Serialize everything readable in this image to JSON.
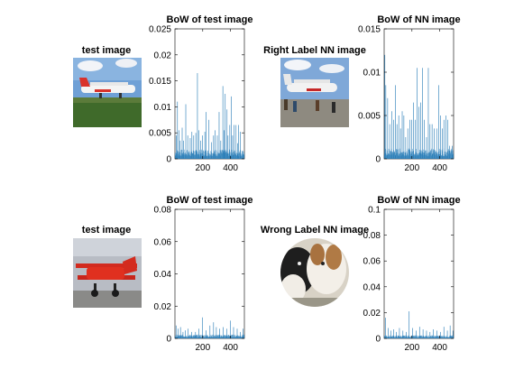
{
  "figure": {
    "panels": [
      {
        "image_title": "test image",
        "image_subject": "white twin-prop aircraft on grass",
        "image_shape": "rect",
        "chart_index": 0
      },
      {
        "image_title": "Right Label NN image",
        "image_subject": "white twin-prop aircraft on tarmac with people",
        "image_shape": "rect",
        "chart_index": 1
      },
      {
        "image_title": "test image",
        "image_subject": "red biplane aircraft",
        "image_shape": "rect",
        "chart_index": 2
      },
      {
        "image_title": "Wrong Label NN image",
        "image_subject": "dogs in a circular crop",
        "image_shape": "circle",
        "chart_index": 3
      }
    ]
  },
  "chart_data": [
    {
      "type": "bar",
      "title": "BoW of test image",
      "xlabel": "",
      "ylabel": "",
      "xlim": [
        0,
        500
      ],
      "ylim": [
        0,
        0.025
      ],
      "xticks": [
        200,
        400
      ],
      "xticklabels": [
        "200",
        "400"
      ],
      "yticks": [
        0,
        0.005,
        0.01,
        0.015,
        0.02,
        0.025
      ],
      "yticklabels": [
        "0",
        "0.005",
        "0.01",
        "0.015",
        "0.02",
        "0.025"
      ],
      "bar_color": "#1f77b4",
      "num_bins": 500,
      "baseline_level": 0.0015,
      "peaks": [
        [
          10,
          0.0045
        ],
        [
          18,
          0.011
        ],
        [
          30,
          0.0055
        ],
        [
          38,
          0.0035
        ],
        [
          52,
          0.006
        ],
        [
          62,
          0.0035
        ],
        [
          78,
          0.0105
        ],
        [
          92,
          0.0045
        ],
        [
          110,
          0.004
        ],
        [
          122,
          0.0052
        ],
        [
          135,
          0.0045
        ],
        [
          150,
          0.005
        ],
        [
          162,
          0.0165
        ],
        [
          172,
          0.0055
        ],
        [
          185,
          0.0035
        ],
        [
          197,
          0.0045
        ],
        [
          215,
          0.0052
        ],
        [
          225,
          0.009
        ],
        [
          245,
          0.0075
        ],
        [
          262,
          0.0032
        ],
        [
          278,
          0.0045
        ],
        [
          290,
          0.0055
        ],
        [
          305,
          0.0045
        ],
        [
          318,
          0.009
        ],
        [
          330,
          0.0035
        ],
        [
          345,
          0.014
        ],
        [
          355,
          0.0055
        ],
        [
          362,
          0.0125
        ],
        [
          375,
          0.0095
        ],
        [
          382,
          0.0045
        ],
        [
          395,
          0.0065
        ],
        [
          405,
          0.012
        ],
        [
          415,
          0.0045
        ],
        [
          425,
          0.0065
        ],
        [
          440,
          0.0065
        ],
        [
          450,
          0.003
        ],
        [
          458,
          0.0065
        ],
        [
          472,
          0.0052
        ],
        [
          488,
          0.0015
        ]
      ]
    },
    {
      "type": "bar",
      "title": "BoW of NN image",
      "xlabel": "",
      "ylabel": "",
      "xlim": [
        0,
        500
      ],
      "ylim": [
        0,
        0.015
      ],
      "xticks": [
        200,
        400
      ],
      "xticklabels": [
        "200",
        "400"
      ],
      "yticks": [
        0,
        0.005,
        0.01,
        0.015
      ],
      "yticklabels": [
        "0",
        "0.005",
        "0.01",
        "0.015"
      ],
      "bar_color": "#1f77b4",
      "num_bins": 500,
      "baseline_level": 0.001,
      "peaks": [
        [
          5,
          0.012
        ],
        [
          12,
          0.0085
        ],
        [
          25,
          0.007
        ],
        [
          40,
          0.004
        ],
        [
          55,
          0.0055
        ],
        [
          68,
          0.0045
        ],
        [
          80,
          0.0085
        ],
        [
          92,
          0.004
        ],
        [
          105,
          0.005
        ],
        [
          118,
          0.0035
        ],
        [
          130,
          0.0055
        ],
        [
          142,
          0.005
        ],
        [
          155,
          0.0025
        ],
        [
          170,
          0.0035
        ],
        [
          185,
          0.0045
        ],
        [
          198,
          0.0045
        ],
        [
          212,
          0.0065
        ],
        [
          225,
          0.0045
        ],
        [
          238,
          0.0105
        ],
        [
          250,
          0.006
        ],
        [
          262,
          0.0065
        ],
        [
          275,
          0.0105
        ],
        [
          290,
          0.0045
        ],
        [
          305,
          0.0025
        ],
        [
          318,
          0.0105
        ],
        [
          330,
          0.004
        ],
        [
          345,
          0.004
        ],
        [
          360,
          0.0035
        ],
        [
          378,
          0.0035
        ],
        [
          392,
          0.0085
        ],
        [
          405,
          0.005
        ],
        [
          418,
          0.0035
        ],
        [
          430,
          0.0045
        ],
        [
          445,
          0.005
        ],
        [
          458,
          0.0045
        ],
        [
          472,
          0.0015
        ],
        [
          490,
          0.0015
        ]
      ]
    },
    {
      "type": "bar",
      "title": "BoW of test image",
      "xlabel": "",
      "ylabel": "",
      "xlim": [
        0,
        500
      ],
      "ylim": [
        0,
        0.08
      ],
      "xticks": [
        200,
        400
      ],
      "xticklabels": [
        "200",
        "400"
      ],
      "yticks": [
        0,
        0.02,
        0.04,
        0.06,
        0.08
      ],
      "yticklabels": [
        "0",
        "0.02",
        "0.04",
        "0.06",
        "0.08"
      ],
      "bar_color": "#1f77b4",
      "num_bins": 500,
      "baseline_level": 0.002,
      "peaks": [
        [
          8,
          0.008
        ],
        [
          22,
          0.006
        ],
        [
          40,
          0.007
        ],
        [
          58,
          0.004
        ],
        [
          75,
          0.005
        ],
        [
          95,
          0.006
        ],
        [
          120,
          0.004
        ],
        [
          148,
          0.004
        ],
        [
          172,
          0.006
        ],
        [
          198,
          0.013
        ],
        [
          225,
          0.005
        ],
        [
          252,
          0.008
        ],
        [
          278,
          0.01
        ],
        [
          298,
          0.007
        ],
        [
          322,
          0.006
        ],
        [
          348,
          0.007
        ],
        [
          372,
          0.006
        ],
        [
          398,
          0.011
        ],
        [
          422,
          0.007
        ],
        [
          448,
          0.006
        ],
        [
          470,
          0.004
        ],
        [
          490,
          0.006
        ]
      ]
    },
    {
      "type": "bar",
      "title": "BoW of NN image",
      "xlabel": "",
      "ylabel": "",
      "xlim": [
        0,
        500
      ],
      "ylim": [
        0,
        0.1
      ],
      "xticks": [
        200,
        400
      ],
      "xticklabels": [
        "200",
        "400"
      ],
      "yticks": [
        0,
        0.02,
        0.04,
        0.06,
        0.08,
        0.1
      ],
      "yticklabels": [
        "0",
        "0.02",
        "0.04",
        "0.06",
        "0.08",
        "0.1"
      ],
      "bar_color": "#1f77b4",
      "num_bins": 500,
      "baseline_level": 0.002,
      "peaks": [
        [
          10,
          0.016
        ],
        [
          28,
          0.008
        ],
        [
          48,
          0.006
        ],
        [
          68,
          0.007
        ],
        [
          88,
          0.005
        ],
        [
          110,
          0.008
        ],
        [
          135,
          0.006
        ],
        [
          158,
          0.005
        ],
        [
          180,
          0.021
        ],
        [
          205,
          0.008
        ],
        [
          230,
          0.006
        ],
        [
          255,
          0.009
        ],
        [
          280,
          0.007
        ],
        [
          305,
          0.006
        ],
        [
          330,
          0.005
        ],
        [
          355,
          0.007
        ],
        [
          380,
          0.006
        ],
        [
          405,
          0.005
        ],
        [
          430,
          0.009
        ],
        [
          455,
          0.006
        ],
        [
          475,
          0.01
        ],
        [
          495,
          0.006
        ]
      ]
    }
  ]
}
